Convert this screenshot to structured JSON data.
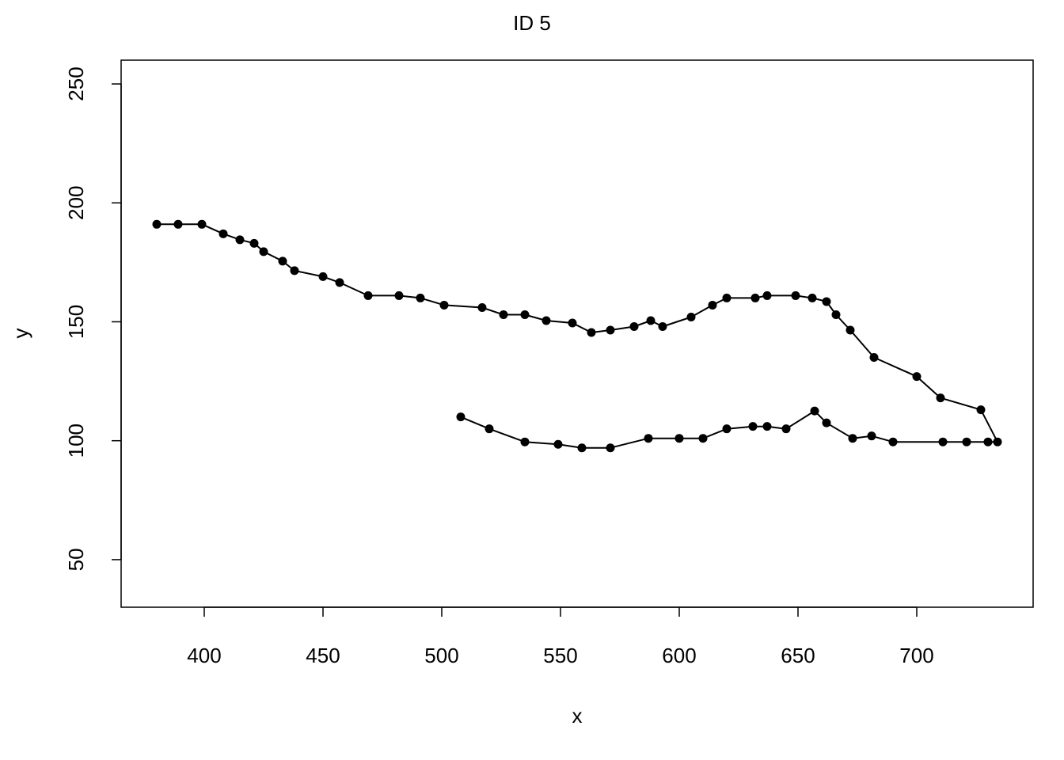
{
  "chart_data": {
    "type": "line",
    "title": "ID 5",
    "xlabel": "x",
    "ylabel": "y",
    "xlim": [
      365,
      749
    ],
    "ylim": [
      30,
      260
    ],
    "xticks": [
      "400",
      "450",
      "500",
      "550",
      "600",
      "650",
      "700"
    ],
    "yticks": [
      "50",
      "100",
      "150",
      "200",
      "250"
    ],
    "grid": false,
    "points": [
      [
        380,
        191
      ],
      [
        389,
        191
      ],
      [
        399,
        191
      ],
      [
        408,
        187
      ],
      [
        415,
        184.5
      ],
      [
        421,
        183
      ],
      [
        425,
        179.5
      ],
      [
        433,
        175.5
      ],
      [
        438,
        171.5
      ],
      [
        450,
        169
      ],
      [
        457,
        166.5
      ],
      [
        469,
        161
      ],
      [
        482,
        161
      ],
      [
        491,
        160
      ],
      [
        501,
        157
      ],
      [
        517,
        156
      ],
      [
        526,
        153
      ],
      [
        535,
        153
      ],
      [
        544,
        150.5
      ],
      [
        555,
        149.5
      ],
      [
        563,
        145.5
      ],
      [
        571,
        146.5
      ],
      [
        581,
        148
      ],
      [
        588,
        150.5
      ],
      [
        593,
        148
      ],
      [
        605,
        152
      ],
      [
        614,
        157
      ],
      [
        620,
        160
      ],
      [
        632,
        160
      ],
      [
        637,
        161
      ],
      [
        649,
        161
      ],
      [
        656,
        160
      ],
      [
        662,
        158.5
      ],
      [
        666,
        153
      ],
      [
        672,
        146.5
      ],
      [
        682,
        135
      ],
      [
        700,
        127
      ],
      [
        710,
        118
      ],
      [
        727,
        113
      ],
      [
        734,
        99.5
      ],
      [
        730,
        99.5
      ],
      [
        721,
        99.5
      ],
      [
        711,
        99.5
      ],
      [
        690,
        99.5
      ],
      [
        681,
        102
      ],
      [
        673,
        101
      ],
      [
        662,
        107.5
      ],
      [
        657,
        112.5
      ],
      [
        645,
        105
      ],
      [
        637,
        106
      ],
      [
        631,
        106
      ],
      [
        620,
        105
      ],
      [
        610,
        101
      ],
      [
        600,
        101
      ],
      [
        587,
        101
      ],
      [
        571,
        97
      ],
      [
        559,
        97
      ],
      [
        549,
        98.5
      ],
      [
        535,
        99.5
      ],
      [
        520,
        105
      ],
      [
        508,
        110
      ]
    ]
  }
}
